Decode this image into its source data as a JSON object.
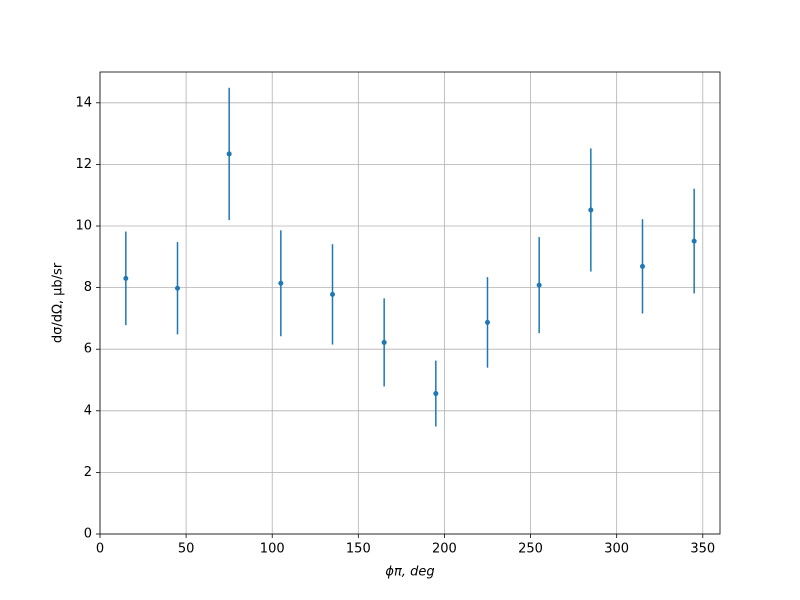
{
  "chart_data": {
    "type": "errorbar",
    "xlabel": "ϕπ, deg",
    "ylabel": "dσ/dΩ, μb/sr",
    "x": [
      15,
      45,
      75,
      105,
      135,
      165,
      195,
      225,
      255,
      285,
      315,
      345
    ],
    "series": [
      {
        "color": "#1f77b4",
        "values": [
          8.3,
          7.98,
          12.34,
          8.14,
          7.78,
          6.22,
          4.56,
          6.87,
          8.08,
          10.52,
          8.69,
          9.51
        ],
        "errors": [
          1.52,
          1.5,
          2.15,
          1.72,
          1.63,
          1.43,
          1.07,
          1.47,
          1.56,
          2.0,
          1.53,
          1.7
        ]
      }
    ],
    "xlim": [
      0,
      360
    ],
    "xticks": [
      0,
      50,
      100,
      150,
      200,
      250,
      300,
      350
    ],
    "ylim": [
      0,
      15
    ],
    "yticks": [
      0,
      2,
      4,
      6,
      8,
      10,
      12,
      14
    ],
    "grid": true
  }
}
